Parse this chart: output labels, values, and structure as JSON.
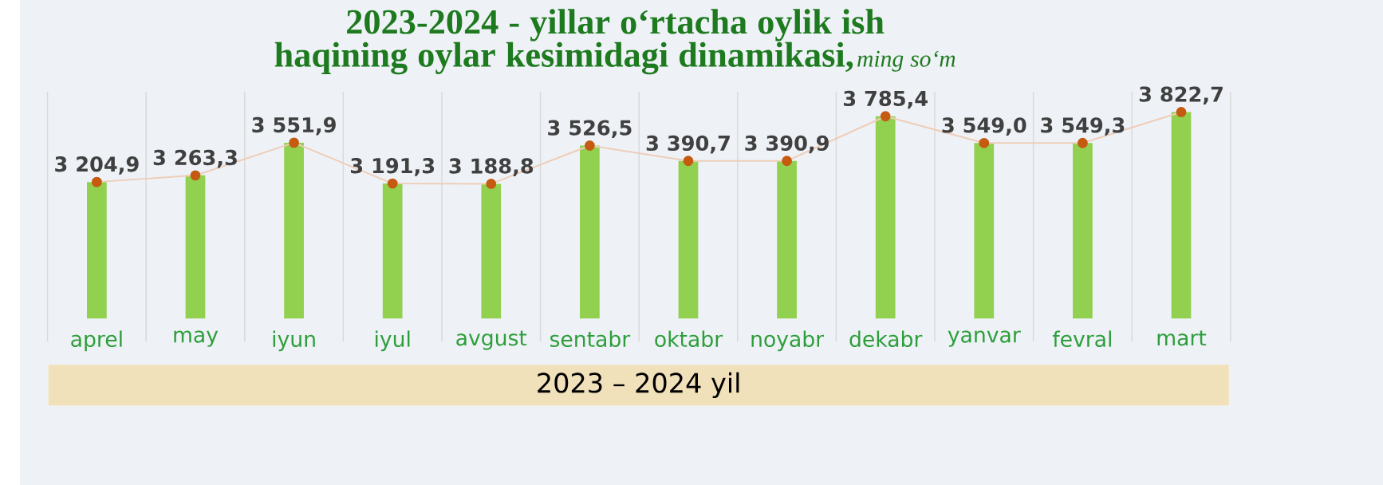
{
  "chart_data": {
    "type": "bar",
    "title": "2023-2024 - yillar o‘rtacha oylik ish haqining oylar kesimidagi dinamikasi,",
    "subtitle": "ming so‘m",
    "xlabel": "2023 – 2024 yil",
    "ylim": [
      2000,
      4000
    ],
    "categories": [
      "aprel",
      "may",
      "iyun",
      "iyul",
      "avgust",
      "sentabr",
      "oktabr",
      "noyabr",
      "dekabr",
      "yanvar",
      "fevral",
      "mart"
    ],
    "series": [
      {
        "color": "#92d050",
        "values": [
          3204.9,
          3263.3,
          3551.9,
          3191.3,
          3188.8,
          3526.5,
          3390.7,
          3390.9,
          3785.4,
          3549.0,
          3549.3,
          3822.7
        ]
      },
      {
        "type": "line",
        "color": "#c55a11",
        "marker": "circle",
        "values": [
          3204.9,
          3263.3,
          3551.9,
          3191.3,
          3188.8,
          3526.5,
          3390.7,
          3390.9,
          3785.4,
          3549.0,
          3549.3,
          3822.7
        ],
        "value_labels": [
          "3 204,9",
          "3 263,3",
          "3 551,9",
          "3 191,3",
          "3 188,8",
          "3 526,5",
          "3 390,7",
          "3 390,9",
          "3 785,4",
          "3 549,0",
          "3 549,3",
          "3 822,7"
        ]
      }
    ]
  }
}
